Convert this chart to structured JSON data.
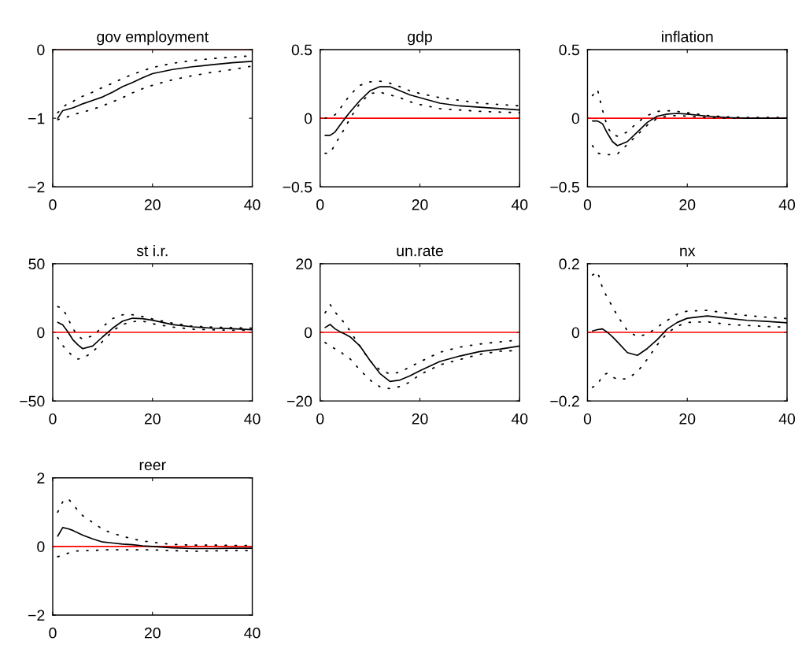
{
  "chart_data": [
    {
      "type": "line",
      "title": "gov employment",
      "x": [
        1,
        2,
        3,
        4,
        5,
        6,
        8,
        10,
        12,
        14,
        16,
        18,
        20,
        24,
        28,
        32,
        36,
        40
      ],
      "xlim": [
        0,
        40
      ],
      "xticks": [
        0,
        20,
        40
      ],
      "ylim": [
        -2,
        0
      ],
      "yticks": [
        {
          "value": -2,
          "label": "−2"
        },
        {
          "value": -1,
          "label": "−1"
        },
        0
      ],
      "grid": false,
      "ref_lines": [
        {
          "axis": "y",
          "value": 0,
          "color": "#ff0000"
        }
      ],
      "series": [
        {
          "color": "#000000",
          "line_style": "solid",
          "values": [
            -1.0,
            -0.89,
            -0.87,
            -0.85,
            -0.82,
            -0.79,
            -0.74,
            -0.69,
            -0.62,
            -0.54,
            -0.48,
            -0.41,
            -0.35,
            -0.29,
            -0.25,
            -0.22,
            -0.19,
            -0.17
          ]
        },
        {
          "color": "#000000",
          "line_style": "dotted",
          "values": [
            -0.92,
            -0.85,
            -0.78,
            -0.76,
            -0.71,
            -0.68,
            -0.62,
            -0.55,
            -0.49,
            -0.42,
            -0.36,
            -0.31,
            -0.26,
            -0.2,
            -0.16,
            -0.13,
            -0.11,
            -0.09
          ]
        },
        {
          "color": "#000000",
          "line_style": "dotted",
          "values": [
            -1.02,
            -1.0,
            -0.98,
            -0.95,
            -0.93,
            -0.91,
            -0.87,
            -0.82,
            -0.76,
            -0.7,
            -0.63,
            -0.57,
            -0.52,
            -0.44,
            -0.38,
            -0.33,
            -0.29,
            -0.24
          ]
        }
      ]
    },
    {
      "type": "line",
      "title": "gdp",
      "x": [
        1,
        2,
        3,
        4,
        5,
        6,
        8,
        10,
        12,
        14,
        16,
        18,
        20,
        24,
        28,
        32,
        36,
        40
      ],
      "xlim": [
        0,
        40
      ],
      "xticks": [
        0,
        20,
        40
      ],
      "ylim": [
        -0.5,
        0.5
      ],
      "yticks": [
        {
          "value": -0.5,
          "label": "−0.5"
        },
        0,
        0.5
      ],
      "grid": false,
      "ref_lines": [
        {
          "axis": "y",
          "value": 0,
          "color": "#ff0000"
        }
      ],
      "series": [
        {
          "color": "#000000",
          "line_style": "solid",
          "values": [
            -0.125,
            -0.125,
            -0.1,
            -0.05,
            0,
            0.045,
            0.13,
            0.2,
            0.23,
            0.23,
            0.2,
            0.17,
            0.15,
            0.11,
            0.09,
            0.08,
            0.07,
            0.06
          ]
        },
        {
          "color": "#000000",
          "line_style": "dotted",
          "values": [
            0,
            0.01,
            0.025,
            0.07,
            0.12,
            0.17,
            0.24,
            0.265,
            0.27,
            0.255,
            0.23,
            0.2,
            0.18,
            0.15,
            0.13,
            0.11,
            0.1,
            0.09
          ]
        },
        {
          "color": "#000000",
          "line_style": "dotted",
          "values": [
            -0.255,
            -0.255,
            -0.19,
            -0.13,
            -0.07,
            0,
            0.11,
            0.18,
            0.19,
            0.17,
            0.15,
            0.12,
            0.1,
            0.07,
            0.06,
            0.05,
            0.045,
            0.04
          ]
        }
      ]
    },
    {
      "type": "line",
      "title": "inflation",
      "x": [
        1,
        2,
        3,
        4,
        5,
        6,
        8,
        10,
        12,
        14,
        16,
        18,
        20,
        24,
        28,
        32,
        36,
        40
      ],
      "xlim": [
        0,
        40
      ],
      "xticks": [
        0,
        20,
        40
      ],
      "ylim": [
        -0.5,
        0.5
      ],
      "yticks": [
        {
          "value": -0.5,
          "label": "−0.5"
        },
        0,
        0.5
      ],
      "grid": false,
      "ref_lines": [
        {
          "axis": "y",
          "value": 0,
          "color": "#ff0000"
        }
      ],
      "series": [
        {
          "color": "#000000",
          "line_style": "solid",
          "values": [
            -0.02,
            -0.02,
            -0.04,
            -0.11,
            -0.17,
            -0.2,
            -0.17,
            -0.1,
            -0.03,
            0.015,
            0.03,
            0.035,
            0.03,
            0.015,
            0.005,
            0,
            0,
            0
          ]
        },
        {
          "color": "#000000",
          "line_style": "dotted",
          "values": [
            0.165,
            0.21,
            0.06,
            -0.065,
            -0.12,
            -0.13,
            -0.1,
            -0.03,
            0.02,
            0.05,
            0.055,
            0.05,
            0.04,
            0.02,
            0.01,
            0.005,
            0.005,
            0.005
          ]
        },
        {
          "color": "#000000",
          "line_style": "dotted",
          "values": [
            -0.2,
            -0.255,
            -0.26,
            -0.265,
            -0.265,
            -0.26,
            -0.19,
            -0.12,
            -0.05,
            0,
            0.015,
            0.02,
            0.015,
            0.005,
            0,
            0,
            0,
            0
          ]
        }
      ]
    },
    {
      "type": "line",
      "title": "st i.r.",
      "x": [
        1,
        2,
        3,
        4,
        5,
        6,
        8,
        10,
        12,
        14,
        16,
        18,
        20,
        24,
        28,
        32,
        36,
        40
      ],
      "xlim": [
        0,
        40
      ],
      "xticks": [
        0,
        20,
        40
      ],
      "ylim": [
        -50,
        50
      ],
      "yticks": [
        {
          "value": -50,
          "label": "−50"
        },
        0,
        50
      ],
      "grid": false,
      "ref_lines": [
        {
          "axis": "y",
          "value": 0,
          "color": "#ff0000"
        }
      ],
      "series": [
        {
          "color": "#000000",
          "line_style": "solid",
          "values": [
            7.3,
            5.4,
            0.6,
            -5.2,
            -9,
            -11.9,
            -10,
            -3.3,
            3,
            8.2,
            10.3,
            10,
            8.8,
            5.7,
            4,
            3,
            2.7,
            1.9
          ]
        },
        {
          "color": "#000000",
          "line_style": "dotted",
          "values": [
            18.7,
            17.5,
            10.5,
            3,
            -2.5,
            -5,
            -2.5,
            4,
            10,
            12.8,
            12.8,
            11.5,
            9.7,
            6.7,
            4.5,
            3.8,
            3.4,
            3
          ]
        },
        {
          "color": "#000000",
          "line_style": "dotted",
          "values": [
            -3.8,
            -9.5,
            -14,
            -17,
            -19.5,
            -19,
            -14.5,
            -6.5,
            1,
            5.8,
            7.8,
            8.2,
            6.3,
            3.8,
            2.3,
            1.9,
            1.5,
            1.5
          ]
        }
      ]
    },
    {
      "type": "line",
      "title": "un.rate",
      "x": [
        1,
        2,
        3,
        4,
        5,
        6,
        8,
        10,
        12,
        14,
        16,
        18,
        20,
        24,
        28,
        32,
        36,
        40
      ],
      "xlim": [
        0,
        40
      ],
      "xticks": [
        0,
        20,
        40
      ],
      "ylim": [
        -20,
        20
      ],
      "yticks": [
        {
          "value": -20,
          "label": "−20"
        },
        0,
        20
      ],
      "grid": false,
      "ref_lines": [
        {
          "axis": "y",
          "value": 0,
          "color": "#ff0000"
        }
      ],
      "series": [
        {
          "color": "#000000",
          "line_style": "solid",
          "values": [
            1.4,
            2.3,
            1,
            0.2,
            -0.5,
            -1.3,
            -4,
            -8.2,
            -12,
            -14.3,
            -13.9,
            -12.7,
            -11.2,
            -8.5,
            -6.9,
            -5.6,
            -4.9,
            -4
          ]
        },
        {
          "color": "#000000",
          "line_style": "dotted",
          "values": [
            5.7,
            8.1,
            5.9,
            4.2,
            2.5,
            0.4,
            -4.1,
            -8.3,
            -11,
            -12.1,
            -11.6,
            -10.1,
            -8.6,
            -5.8,
            -4.3,
            -3.4,
            -2.8,
            -2.2
          ]
        },
        {
          "color": "#000000",
          "line_style": "dotted",
          "values": [
            -3,
            -4,
            -4.8,
            -5.4,
            -6.9,
            -7.7,
            -11,
            -13.9,
            -15.9,
            -16.4,
            -15.8,
            -14.5,
            -12.3,
            -9.5,
            -7.9,
            -6.4,
            -5.5,
            -5.3
          ]
        }
      ]
    },
    {
      "type": "line",
      "title": "nx",
      "x": [
        1,
        2,
        3,
        4,
        5,
        6,
        8,
        10,
        12,
        14,
        16,
        18,
        20,
        24,
        28,
        32,
        36,
        40
      ],
      "xlim": [
        0,
        40
      ],
      "xticks": [
        0,
        20,
        40
      ],
      "ylim": [
        -0.2,
        0.2
      ],
      "yticks": [
        {
          "value": -0.2,
          "label": "−0.2"
        },
        0,
        0.2
      ],
      "grid": false,
      "ref_lines": [
        {
          "axis": "y",
          "value": 0,
          "color": "#ff0000"
        }
      ],
      "series": [
        {
          "color": "#000000",
          "line_style": "solid",
          "values": [
            0.004,
            0.008,
            0.01,
            0,
            -0.013,
            -0.028,
            -0.059,
            -0.067,
            -0.047,
            -0.021,
            0.01,
            0.029,
            0.041,
            0.048,
            0.041,
            0.035,
            0.032,
            0.028
          ]
        },
        {
          "color": "#000000",
          "line_style": "dotted",
          "values": [
            0.167,
            0.177,
            0.13,
            0.1,
            0.075,
            0.048,
            0.005,
            -0.013,
            -0.005,
            0.015,
            0.035,
            0.053,
            0.062,
            0.064,
            0.056,
            0.049,
            0.044,
            0.04
          ]
        },
        {
          "color": "#000000",
          "line_style": "dotted",
          "values": [
            -0.16,
            -0.154,
            -0.125,
            -0.119,
            -0.13,
            -0.137,
            -0.135,
            -0.115,
            -0.078,
            -0.036,
            -0.002,
            0.018,
            0.029,
            0.031,
            0.023,
            0.02,
            0.017,
            0.015
          ]
        }
      ]
    },
    {
      "type": "line",
      "title": "reer",
      "x": [
        1,
        2,
        3,
        4,
        5,
        6,
        8,
        10,
        12,
        14,
        16,
        18,
        20,
        24,
        28,
        32,
        36,
        40
      ],
      "xlim": [
        0,
        40
      ],
      "xticks": [
        0,
        20,
        40
      ],
      "ylim": [
        -2,
        2
      ],
      "yticks": [
        {
          "value": -2,
          "label": "−2"
        },
        0,
        2
      ],
      "grid": false,
      "ref_lines": [
        {
          "axis": "y",
          "value": 0,
          "color": "#ff0000"
        }
      ],
      "series": [
        {
          "color": "#000000",
          "line_style": "solid",
          "values": [
            0.3,
            0.55,
            0.52,
            0.47,
            0.4,
            0.33,
            0.22,
            0.13,
            0.1,
            0.07,
            0.05,
            0.02,
            0,
            -0.04,
            -0.06,
            -0.06,
            -0.05,
            -0.05
          ]
        },
        {
          "color": "#000000",
          "line_style": "dotted",
          "values": [
            1.0,
            1.3,
            1.4,
            1.25,
            1.05,
            0.9,
            0.7,
            0.5,
            0.38,
            0.3,
            0.22,
            0.16,
            0.12,
            0.06,
            0.04,
            0.04,
            0.03,
            0.03
          ]
        },
        {
          "color": "#000000",
          "line_style": "dotted",
          "values": [
            -0.3,
            -0.25,
            -0.2,
            -0.15,
            -0.13,
            -0.12,
            -0.12,
            -0.1,
            -0.1,
            -0.1,
            -0.1,
            -0.1,
            -0.1,
            -0.12,
            -0.14,
            -0.13,
            -0.12,
            -0.12
          ]
        }
      ]
    }
  ]
}
